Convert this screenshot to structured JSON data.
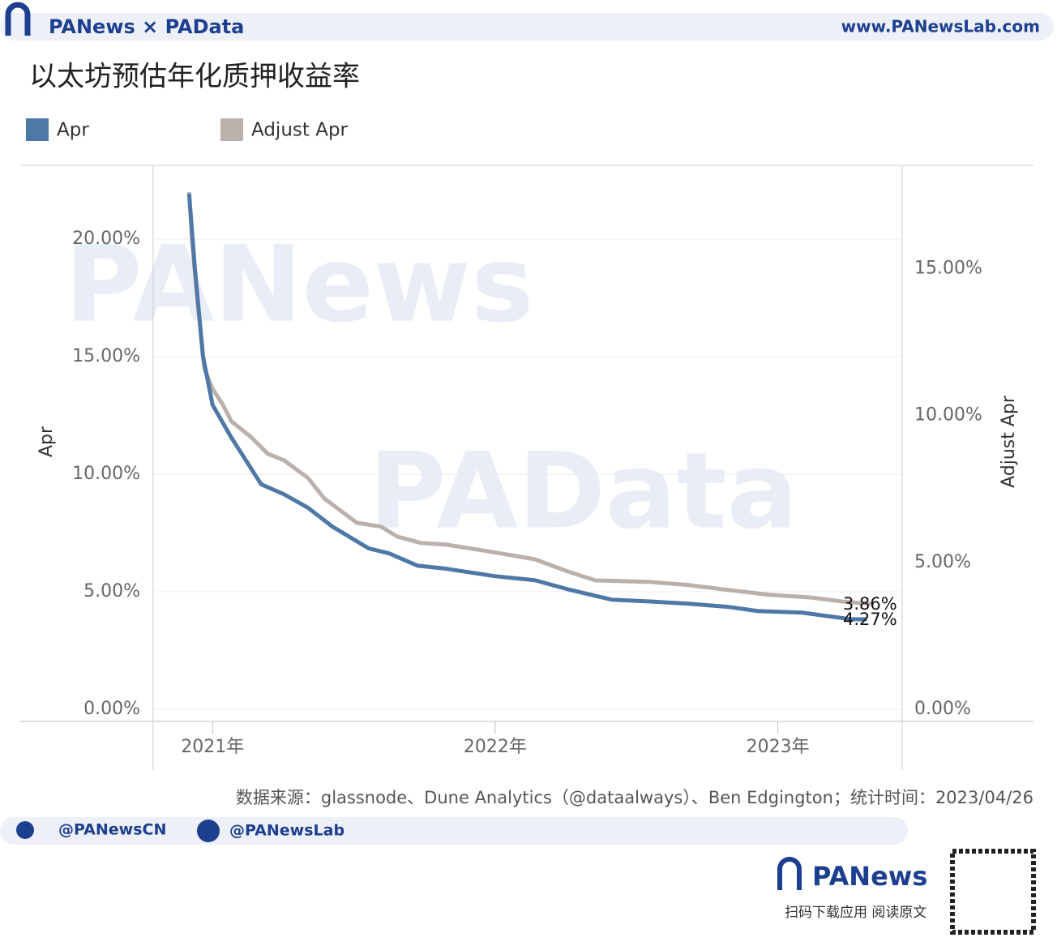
{
  "header": {
    "brand": "PANews × PAData",
    "site": "www.PANewsLab.com"
  },
  "chart_data": {
    "type": "line",
    "title": "以太坊预估年化质押收益率",
    "y_label": "Apr",
    "y2_label": "Adjust Apr",
    "xlim": [
      2020.79,
      2023.44
    ],
    "xticks": [
      {
        "value": 2021,
        "label": "2021年"
      },
      {
        "value": 2022,
        "label": "2022年"
      },
      {
        "value": 2023,
        "label": "2023年"
      }
    ],
    "ylim": [
      -0.52,
      23.14
    ],
    "yticks": [
      {
        "value": 0,
        "label": "0.00%"
      },
      {
        "value": 5,
        "label": "5.00%"
      },
      {
        "value": 10,
        "label": "10.00%"
      },
      {
        "value": 15,
        "label": "15.00%"
      },
      {
        "value": 20,
        "label": "20.00%"
      }
    ],
    "y2lim": [
      -0.41,
      18.51
    ],
    "y2ticks": [
      {
        "value": 0,
        "label": "0.00%"
      },
      {
        "value": 5,
        "label": "5.00%"
      },
      {
        "value": 10,
        "label": "10.00%"
      },
      {
        "value": 15,
        "label": "15.00%"
      }
    ],
    "grid": true,
    "series": [
      {
        "name": "Apr",
        "color": "#4e79a7",
        "x": [
          2020.917,
          2020.937,
          2020.966,
          2021.0,
          2021.066,
          2021.172,
          2021.252,
          2021.338,
          2021.424,
          2021.553,
          2021.625,
          2021.725,
          2021.825,
          2022.0,
          2022.14,
          2022.255,
          2022.413,
          2022.542,
          2022.685,
          2022.828,
          2022.928,
          2023.086,
          2023.172,
          2023.258,
          2023.315
        ],
        "values": [
          21.93,
          18.83,
          15.03,
          12.95,
          11.57,
          9.57,
          9.15,
          8.57,
          7.77,
          6.84,
          6.63,
          6.11,
          5.98,
          5.66,
          5.49,
          5.11,
          4.66,
          4.59,
          4.49,
          4.35,
          4.18,
          4.11,
          3.97,
          3.83,
          3.83
        ]
      },
      {
        "name": "Adjust Apr",
        "color": "#bab0ac",
        "axis": "y2",
        "x": [
          2020.917,
          2020.928,
          2020.946,
          2020.971,
          2021.0,
          2021.037,
          2021.066,
          2021.138,
          2021.195,
          2021.252,
          2021.338,
          2021.395,
          2021.51,
          2021.596,
          2021.653,
          2021.739,
          2021.825,
          2021.968,
          2022.14,
          2022.255,
          2022.355,
          2022.542,
          2022.685,
          2022.828,
          2022.971,
          2023.115,
          2023.229,
          2023.33
        ],
        "values": [
          17.6,
          15.88,
          13.95,
          11.6,
          10.91,
          10.36,
          9.81,
          9.25,
          8.7,
          8.48,
          7.87,
          7.18,
          6.35,
          6.22,
          5.88,
          5.66,
          5.61,
          5.39,
          5.11,
          4.7,
          4.39,
          4.34,
          4.23,
          4.06,
          3.9,
          3.81,
          3.67,
          3.59
        ]
      }
    ],
    "annotations": [
      "3.86%",
      "4.27%"
    ],
    "watermarks": [
      "PANews",
      "PAData"
    ],
    "source": "数据来源：glassnode、Dune Analytics（@dataalways）、Ben Edgington；统计时间：2023/04/26"
  },
  "footer": {
    "twitter": "@PANewsCN",
    "facebook": "@PANewsLab",
    "brand": "PANews",
    "cta": "扫码下载应用  阅读原文"
  }
}
